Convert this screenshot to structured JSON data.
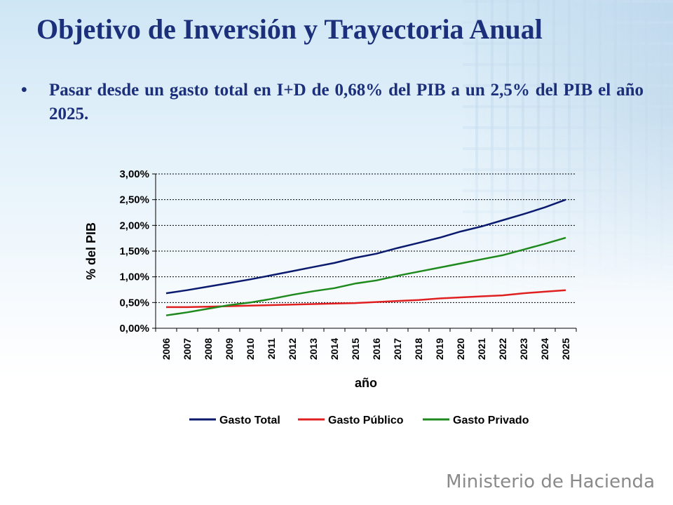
{
  "slide": {
    "title": "Objetivo de Inversión y Trayectoria Anual",
    "bullet_symbol": "•",
    "bullet_text": "Pasar desde un gasto total en I+D de 0,68% del PIB a un 2,5% del PIB el año 2025.",
    "footer": "Ministerio de Hacienda"
  },
  "chart_data": {
    "type": "line",
    "title": "",
    "xlabel": "año",
    "ylabel": "% del PIB",
    "x": [
      "2006",
      "2007",
      "2008",
      "2009",
      "2010",
      "2011",
      "2012",
      "2013",
      "2014",
      "2015",
      "2016",
      "2017",
      "2018",
      "2019",
      "2020",
      "2021",
      "2022",
      "2023",
      "2024",
      "2025"
    ],
    "ylim": [
      0,
      3.0
    ],
    "yticks": [
      0,
      0.5,
      1.0,
      1.5,
      2.0,
      2.5,
      3.0
    ],
    "ytick_labels": [
      "0,00%",
      "0,50%",
      "1,00%",
      "1,50%",
      "2,00%",
      "2,50%",
      "3,00%"
    ],
    "grid": true,
    "legend_position": "bottom",
    "series": [
      {
        "name": "Gasto Total",
        "color": "#0a1a6e",
        "values": [
          0.68,
          0.74,
          0.81,
          0.88,
          0.95,
          1.03,
          1.11,
          1.19,
          1.27,
          1.37,
          1.45,
          1.56,
          1.66,
          1.76,
          1.88,
          1.98,
          2.1,
          2.22,
          2.35,
          2.5
        ]
      },
      {
        "name": "Gasto Público",
        "color": "#e02020",
        "values": [
          0.41,
          0.41,
          0.42,
          0.43,
          0.44,
          0.45,
          0.46,
          0.47,
          0.48,
          0.49,
          0.51,
          0.53,
          0.55,
          0.58,
          0.6,
          0.62,
          0.64,
          0.68,
          0.71,
          0.74
        ]
      },
      {
        "name": "Gasto Privado",
        "color": "#1e8a1e",
        "values": [
          0.25,
          0.31,
          0.38,
          0.45,
          0.5,
          0.57,
          0.65,
          0.72,
          0.78,
          0.87,
          0.93,
          1.02,
          1.1,
          1.18,
          1.26,
          1.34,
          1.42,
          1.53,
          1.64,
          1.76
        ]
      }
    ]
  }
}
